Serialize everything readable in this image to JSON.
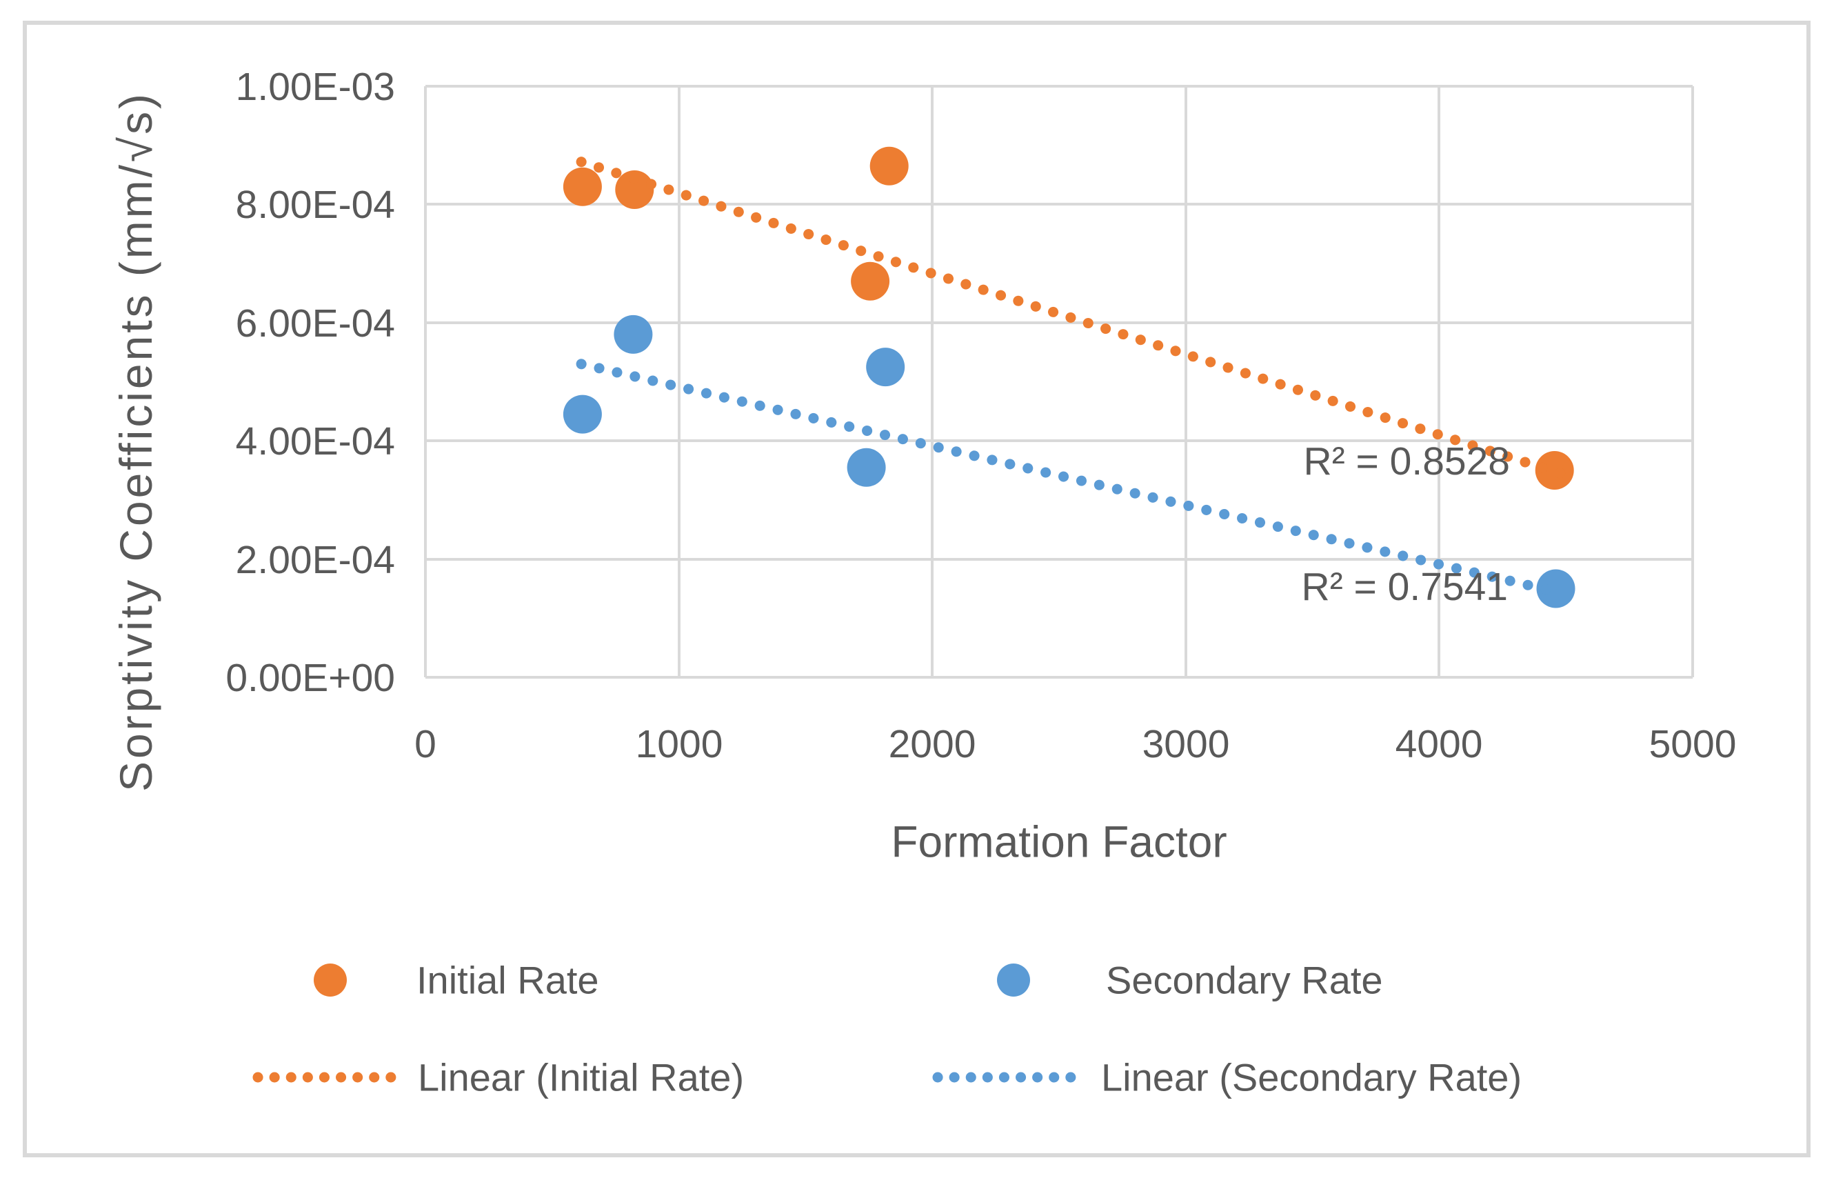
{
  "chart_data": {
    "type": "scatter",
    "title": "",
    "xlabel": "Formation Factor",
    "ylabel": "Sorptivity Coefficients (mm/√s)",
    "xlim": [
      0,
      5000
    ],
    "ylim": [
      0,
      0.001
    ],
    "grid": true,
    "x_ticks": [
      0,
      1000,
      2000,
      3000,
      4000,
      5000
    ],
    "x_tick_labels": [
      "0",
      "1000",
      "2000",
      "3000",
      "4000",
      "5000"
    ],
    "y_ticks": [
      0,
      0.0002,
      0.0004,
      0.0006,
      0.0008,
      0.001
    ],
    "y_tick_labels_top_to_bottom": [
      "1.00E-03",
      "8.00E-04",
      "6.00E-04",
      "4.00E-04",
      "2.00E-04",
      "0.00E+00"
    ],
    "series": [
      {
        "name": "Initial Rate",
        "color": "#ED7D31",
        "marker": "circle",
        "points": [
          {
            "x": 620,
            "y": 0.00083
          },
          {
            "x": 825,
            "y": 0.000825
          },
          {
            "x": 1755,
            "y": 0.00067
          },
          {
            "x": 1830,
            "y": 0.000865
          },
          {
            "x": 4455,
            "y": 0.00035
          }
        ],
        "trendline": {
          "name": "Linear (Initial Rate)",
          "style": "dotted",
          "x_start": 615,
          "y_start": 0.000872,
          "x_end": 4500,
          "y_end": 0.000342,
          "r2": 0.8528,
          "r2_label": "R² = 0.8528"
        }
      },
      {
        "name": "Secondary Rate",
        "color": "#5B9BD5",
        "marker": "circle",
        "points": [
          {
            "x": 620,
            "y": 0.000445
          },
          {
            "x": 820,
            "y": 0.00058
          },
          {
            "x": 1740,
            "y": 0.000355
          },
          {
            "x": 1815,
            "y": 0.000525
          },
          {
            "x": 4460,
            "y": 0.00015
          }
        ],
        "trendline": {
          "name": "Linear (Secondary Rate)",
          "style": "dotted",
          "x_start": 615,
          "y_start": 0.00053,
          "x_end": 4480,
          "y_end": 0.000143,
          "r2": 0.7541,
          "r2_label": "R² = 0.7541"
        }
      }
    ],
    "legend": {
      "position": "bottom",
      "entries": [
        "Initial Rate",
        "Secondary Rate",
        "Linear (Initial Rate)",
        "Linear (Secondary Rate)"
      ]
    }
  },
  "colors": {
    "orange": "#ED7D31",
    "blue": "#5B9BD5",
    "grid": "#D9D9D9",
    "border": "#D9D9D9",
    "text": "#595959",
    "background": "#FFFFFF"
  }
}
